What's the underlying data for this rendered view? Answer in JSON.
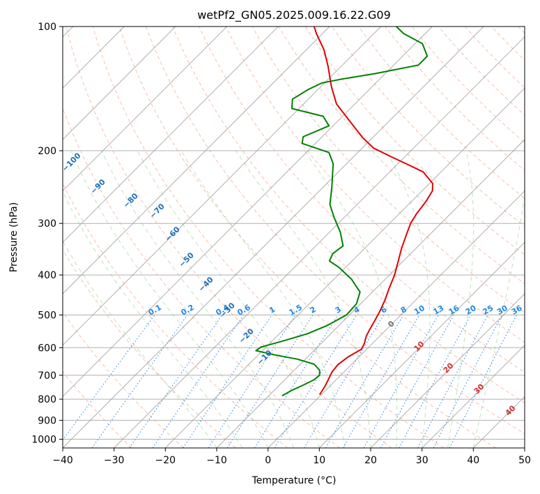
{
  "chart_data": {
    "type": "line",
    "title": "wetPf2_GN05.2025.009.16.22.G09",
    "xlabel": "Temperature (°C)",
    "ylabel": "Pressure (hPa)",
    "x_scale": "linear",
    "y_scale": "log",
    "xlim": [
      -40,
      50
    ],
    "ylim": [
      1050,
      100
    ],
    "x_ticks": [
      "−40",
      "−30",
      "−20",
      "−10",
      "0",
      "10",
      "20",
      "30",
      "40",
      "50"
    ],
    "y_ticks": [
      "100",
      "200",
      "300",
      "400",
      "500",
      "600",
      "700",
      "800",
      "900",
      "1000"
    ],
    "skew": true,
    "grid": true,
    "series": [
      {
        "color": "#e00000",
        "points": [
          [
            -0.3,
            780
          ],
          [
            -0.9,
            745
          ],
          [
            -1.6,
            715
          ],
          [
            -2.3,
            688
          ],
          [
            -2.6,
            660
          ],
          [
            -2.1,
            632
          ],
          [
            -1.0,
            605
          ],
          [
            -1.6,
            585
          ],
          [
            -2.6,
            563
          ],
          [
            -3.3,
            540
          ],
          [
            -4.0,
            515
          ],
          [
            -4.8,
            490
          ],
          [
            -6.0,
            460
          ],
          [
            -7.5,
            430
          ],
          [
            -9.0,
            400
          ],
          [
            -11.0,
            370
          ],
          [
            -12.8,
            345
          ],
          [
            -14.5,
            320
          ],
          [
            -15.9,
            300
          ],
          [
            -16.6,
            285
          ],
          [
            -17.2,
            265
          ],
          [
            -18.0,
            250
          ],
          [
            -19.4,
            240
          ],
          [
            -23.5,
            225
          ],
          [
            -28.4,
            215
          ],
          [
            -33.1,
            206
          ],
          [
            -37.8,
            197
          ],
          [
            -41.9,
            186
          ],
          [
            -47.5,
            170
          ],
          [
            -53.6,
            154
          ],
          [
            -57.9,
            140
          ],
          [
            -62.5,
            125
          ],
          [
            -66.5,
            114
          ],
          [
            -71.2,
            104
          ],
          [
            -73.0,
            100
          ]
        ]
      },
      {
        "color": "#008000",
        "points": [
          [
            -7.4,
            785
          ],
          [
            -6.6,
            762
          ],
          [
            -5.4,
            740
          ],
          [
            -4.3,
            718
          ],
          [
            -4.1,
            700
          ],
          [
            -5.1,
            680
          ],
          [
            -7.3,
            658
          ],
          [
            -11.5,
            640
          ],
          [
            -17.1,
            624
          ],
          [
            -21.3,
            610
          ],
          [
            -21.0,
            598
          ],
          [
            -17.9,
            578
          ],
          [
            -14.5,
            555
          ],
          [
            -12.3,
            530
          ],
          [
            -10.6,
            500
          ],
          [
            -10.8,
            470
          ],
          [
            -12.4,
            440
          ],
          [
            -16.5,
            410
          ],
          [
            -21.4,
            383
          ],
          [
            -24.4,
            370
          ],
          [
            -25.2,
            355
          ],
          [
            -24.7,
            340
          ],
          [
            -27.9,
            315
          ],
          [
            -32.0,
            290
          ],
          [
            -35.3,
            270
          ],
          [
            -38.3,
            245
          ],
          [
            -40.4,
            230
          ],
          [
            -42.6,
            215
          ],
          [
            -45.6,
            202
          ],
          [
            -52.6,
            192
          ],
          [
            -53.7,
            185
          ],
          [
            -50.8,
            174
          ],
          [
            -53.8,
            165
          ],
          [
            -61.4,
            158
          ],
          [
            -63.1,
            150
          ],
          [
            -61.9,
            142
          ],
          [
            -60.5,
            137
          ],
          [
            -57.3,
            134
          ],
          [
            -51.9,
            130
          ],
          [
            -45.2,
            124
          ],
          [
            -45.2,
            118
          ],
          [
            -48.6,
            110
          ],
          [
            -54.2,
            104
          ],
          [
            -57.0,
            100
          ]
        ]
      }
    ],
    "isotherm_labels": [
      "−100",
      "−90",
      "−80",
      "−70",
      "−60",
      "−50",
      "−40",
      "−30",
      "−20",
      "−10"
    ],
    "mixing_ratio_labels": [
      "0.1",
      "0.2",
      "0.4",
      "0.6",
      "1",
      "1.5",
      "2",
      "3",
      "4",
      "6",
      "8",
      "10",
      "13",
      "16",
      "20",
      "25",
      "30",
      "36"
    ],
    "isotherm_zero_label": "0",
    "warm_isotherm_labels": [
      "10",
      "20",
      "30",
      "40"
    ]
  }
}
